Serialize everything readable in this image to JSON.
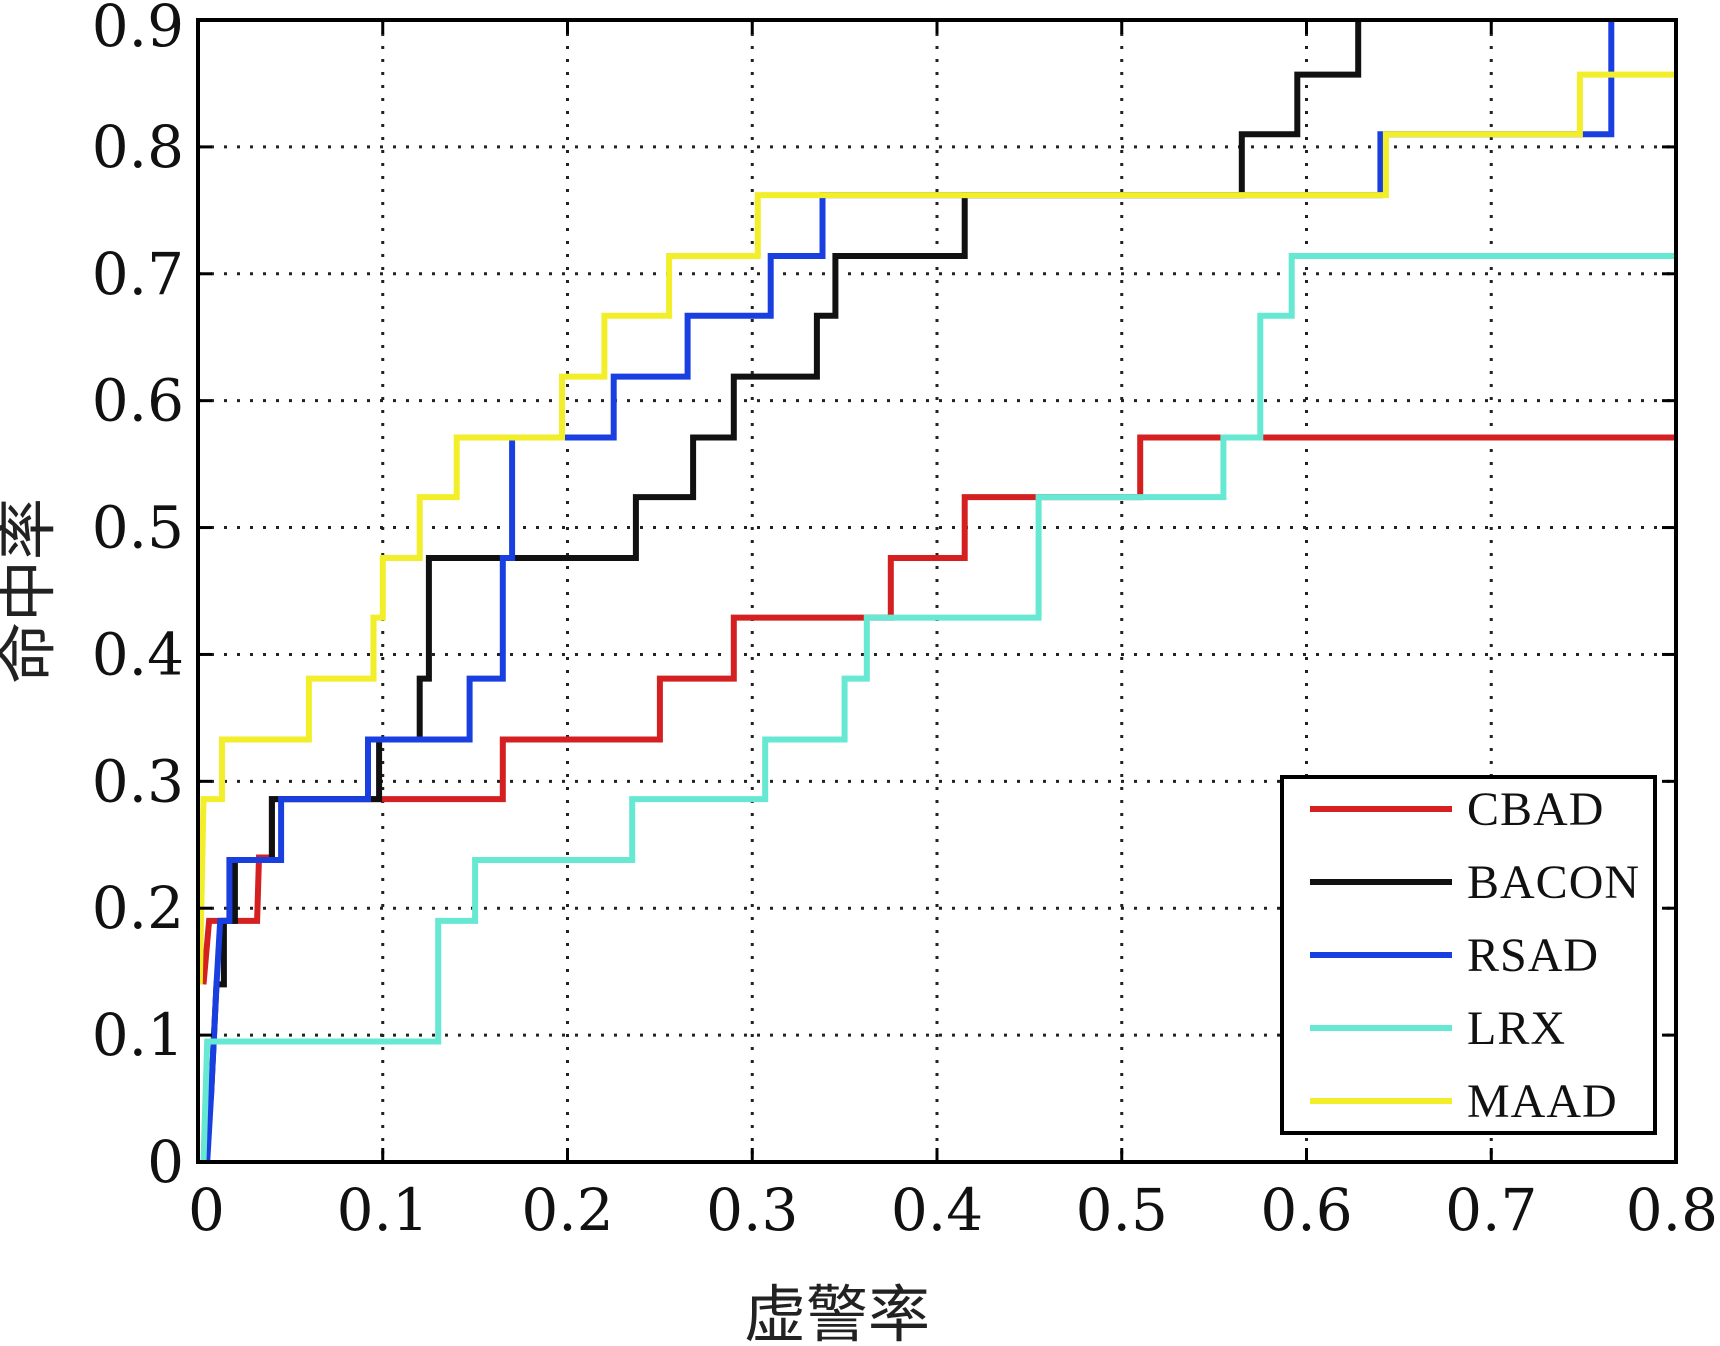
{
  "chart_data": {
    "type": "line",
    "title": "",
    "xlabel": "虚警率",
    "ylabel": "命中率",
    "xlim": [
      0,
      0.8
    ],
    "ylim": [
      0,
      0.9
    ],
    "xticks": [
      0,
      0.1,
      0.2,
      0.3,
      0.4,
      0.5,
      0.6,
      0.7,
      0.8
    ],
    "xtick_labels": [
      "0",
      "0.1",
      "0.2",
      "0.3",
      "0.4",
      "0.5",
      "0.6",
      "0.7",
      "0.8"
    ],
    "yticks": [
      0,
      0.1,
      0.2,
      0.3,
      0.4,
      0.5,
      0.6,
      0.7,
      0.8,
      0.9
    ],
    "ytick_labels": [
      "0",
      "0.1",
      "0.2",
      "0.3",
      "0.4",
      "0.5",
      "0.6",
      "0.7",
      "0.8",
      "0.9"
    ],
    "grid": true,
    "legend_position": "bottom-right",
    "series": [
      {
        "name": "CBAD",
        "color": "#d42020",
        "points": [
          [
            0.003,
            0.14
          ],
          [
            0.006,
            0.19
          ],
          [
            0.032,
            0.19
          ],
          [
            0.033,
            0.24
          ],
          [
            0.04,
            0.24
          ],
          [
            0.04,
            0.286
          ],
          [
            0.165,
            0.286
          ],
          [
            0.165,
            0.333
          ],
          [
            0.25,
            0.333
          ],
          [
            0.25,
            0.381
          ],
          [
            0.29,
            0.381
          ],
          [
            0.29,
            0.429
          ],
          [
            0.375,
            0.429
          ],
          [
            0.375,
            0.476
          ],
          [
            0.415,
            0.476
          ],
          [
            0.415,
            0.524
          ],
          [
            0.51,
            0.524
          ],
          [
            0.51,
            0.571
          ],
          [
            0.8,
            0.571
          ]
        ]
      },
      {
        "name": "BACON",
        "color": "#111111",
        "points": [
          [
            0.007,
            0.05
          ],
          [
            0.01,
            0.14
          ],
          [
            0.014,
            0.14
          ],
          [
            0.014,
            0.19
          ],
          [
            0.02,
            0.19
          ],
          [
            0.02,
            0.238
          ],
          [
            0.04,
            0.238
          ],
          [
            0.04,
            0.286
          ],
          [
            0.098,
            0.286
          ],
          [
            0.098,
            0.333
          ],
          [
            0.12,
            0.333
          ],
          [
            0.12,
            0.381
          ],
          [
            0.125,
            0.381
          ],
          [
            0.125,
            0.476
          ],
          [
            0.237,
            0.476
          ],
          [
            0.237,
            0.524
          ],
          [
            0.268,
            0.524
          ],
          [
            0.268,
            0.571
          ],
          [
            0.29,
            0.571
          ],
          [
            0.29,
            0.619
          ],
          [
            0.335,
            0.619
          ],
          [
            0.335,
            0.667
          ],
          [
            0.345,
            0.667
          ],
          [
            0.345,
            0.714
          ],
          [
            0.415,
            0.714
          ],
          [
            0.415,
            0.762
          ],
          [
            0.565,
            0.762
          ],
          [
            0.565,
            0.81
          ],
          [
            0.595,
            0.81
          ],
          [
            0.595,
            0.857
          ],
          [
            0.628,
            0.857
          ],
          [
            0.628,
            0.9
          ]
        ]
      },
      {
        "name": "RSAD",
        "color": "#1a3fe0",
        "points": [
          [
            0.005,
            0.0
          ],
          [
            0.007,
            0.05
          ],
          [
            0.01,
            0.14
          ],
          [
            0.012,
            0.19
          ],
          [
            0.017,
            0.19
          ],
          [
            0.017,
            0.238
          ],
          [
            0.045,
            0.238
          ],
          [
            0.045,
            0.286
          ],
          [
            0.092,
            0.286
          ],
          [
            0.092,
            0.333
          ],
          [
            0.147,
            0.333
          ],
          [
            0.147,
            0.381
          ],
          [
            0.165,
            0.381
          ],
          [
            0.165,
            0.476
          ],
          [
            0.17,
            0.476
          ],
          [
            0.17,
            0.571
          ],
          [
            0.225,
            0.571
          ],
          [
            0.225,
            0.619
          ],
          [
            0.265,
            0.619
          ],
          [
            0.265,
            0.667
          ],
          [
            0.31,
            0.667
          ],
          [
            0.31,
            0.714
          ],
          [
            0.338,
            0.714
          ],
          [
            0.338,
            0.762
          ],
          [
            0.64,
            0.762
          ],
          [
            0.64,
            0.81
          ],
          [
            0.765,
            0.81
          ],
          [
            0.765,
            0.9
          ]
        ]
      },
      {
        "name": "LRX",
        "color": "#66e8d2",
        "points": [
          [
            0.003,
            0.0
          ],
          [
            0.005,
            0.095
          ],
          [
            0.13,
            0.095
          ],
          [
            0.13,
            0.19
          ],
          [
            0.15,
            0.19
          ],
          [
            0.15,
            0.238
          ],
          [
            0.235,
            0.238
          ],
          [
            0.235,
            0.286
          ],
          [
            0.307,
            0.286
          ],
          [
            0.307,
            0.333
          ],
          [
            0.35,
            0.333
          ],
          [
            0.35,
            0.381
          ],
          [
            0.362,
            0.381
          ],
          [
            0.362,
            0.429
          ],
          [
            0.455,
            0.429
          ],
          [
            0.455,
            0.524
          ],
          [
            0.555,
            0.524
          ],
          [
            0.555,
            0.571
          ],
          [
            0.575,
            0.571
          ],
          [
            0.575,
            0.667
          ],
          [
            0.592,
            0.667
          ],
          [
            0.592,
            0.714
          ],
          [
            0.8,
            0.714
          ]
        ]
      },
      {
        "name": "MAAD",
        "color": "#f2ee2a",
        "points": [
          [
            0.001,
            0.14
          ],
          [
            0.003,
            0.286
          ],
          [
            0.013,
            0.286
          ],
          [
            0.013,
            0.333
          ],
          [
            0.06,
            0.333
          ],
          [
            0.06,
            0.381
          ],
          [
            0.095,
            0.381
          ],
          [
            0.095,
            0.429
          ],
          [
            0.1,
            0.429
          ],
          [
            0.1,
            0.476
          ],
          [
            0.12,
            0.476
          ],
          [
            0.12,
            0.524
          ],
          [
            0.14,
            0.524
          ],
          [
            0.14,
            0.571
          ],
          [
            0.197,
            0.571
          ],
          [
            0.197,
            0.619
          ],
          [
            0.22,
            0.619
          ],
          [
            0.22,
            0.667
          ],
          [
            0.255,
            0.667
          ],
          [
            0.255,
            0.714
          ],
          [
            0.303,
            0.714
          ],
          [
            0.303,
            0.762
          ],
          [
            0.643,
            0.762
          ],
          [
            0.643,
            0.81
          ],
          [
            0.748,
            0.81
          ],
          [
            0.748,
            0.857
          ],
          [
            0.8,
            0.857
          ]
        ]
      }
    ]
  }
}
